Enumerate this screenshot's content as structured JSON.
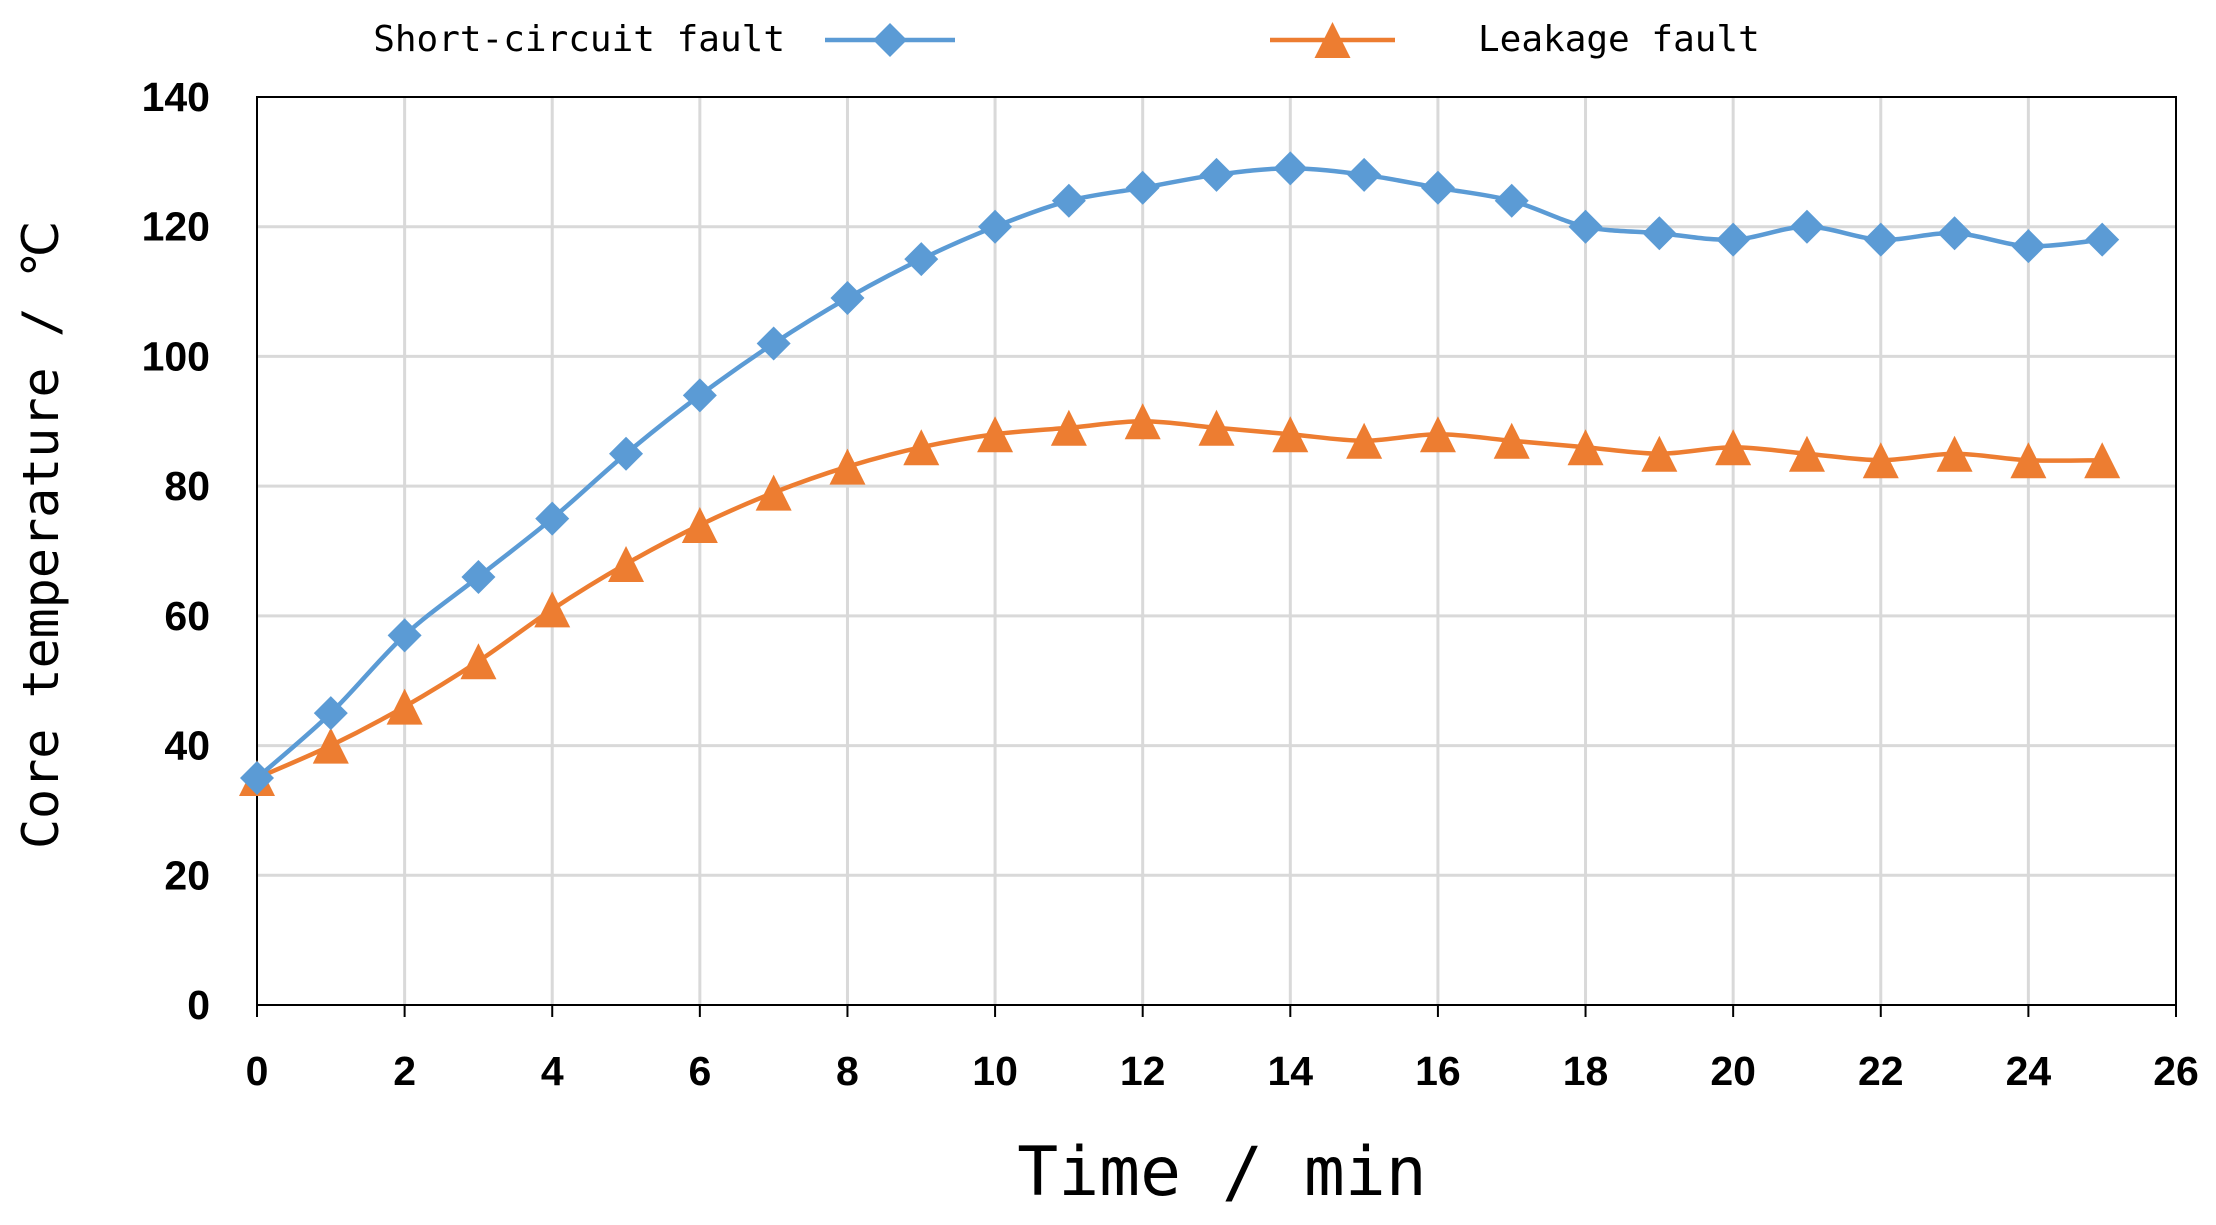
{
  "chart_data": {
    "type": "line",
    "title": "",
    "xlabel": "Time / min",
    "ylabel": "Core temperature / ℃",
    "xlim": [
      0,
      26
    ],
    "ylim": [
      0,
      140
    ],
    "xticks": [
      0,
      2,
      4,
      6,
      8,
      10,
      12,
      14,
      16,
      18,
      20,
      22,
      24,
      26
    ],
    "yticks": [
      0,
      20,
      40,
      60,
      80,
      100,
      120,
      140
    ],
    "grid": true,
    "legend_position": "top",
    "x": [
      0,
      1,
      2,
      3,
      4,
      5,
      6,
      7,
      8,
      9,
      10,
      11,
      12,
      13,
      14,
      15,
      16,
      17,
      18,
      19,
      20,
      21,
      22,
      23,
      24,
      25
    ],
    "series": [
      {
        "name": "Short-circuit fault",
        "marker": "diamond",
        "color": "#5B9BD5",
        "values": [
          35,
          45,
          57,
          66,
          75,
          85,
          94,
          102,
          109,
          115,
          120,
          124,
          126,
          128,
          129,
          128,
          126,
          124,
          120,
          119,
          118,
          120,
          118,
          119,
          117,
          118
        ]
      },
      {
        "name": "Leakage fault",
        "marker": "triangle",
        "color": "#ED7D31",
        "values": [
          35,
          40,
          46,
          53,
          61,
          68,
          74,
          79,
          83,
          86,
          88,
          89,
          90,
          89,
          88,
          87,
          88,
          87,
          86,
          85,
          86,
          85,
          84,
          85,
          84,
          84
        ]
      }
    ]
  }
}
